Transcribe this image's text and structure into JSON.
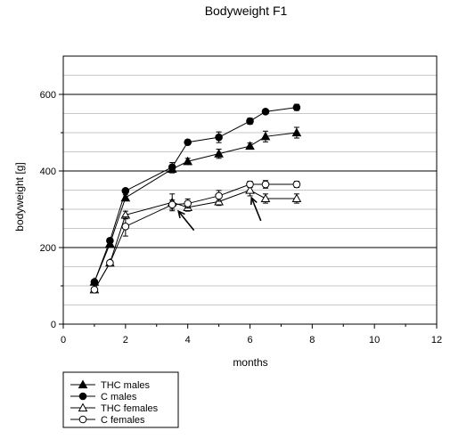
{
  "chart_data": {
    "type": "line",
    "title": "Bodyweight  F1",
    "xlabel": "months",
    "ylabel": "bodyweight [g]",
    "xlim": [
      0,
      12
    ],
    "ylim": [
      0,
      700
    ],
    "x_ticks": [
      0,
      2,
      4,
      6,
      8,
      10,
      12
    ],
    "y_ticks": [
      0,
      200,
      400,
      600
    ],
    "grid": "horizontal",
    "legend_position": "bottom-left",
    "series": [
      {
        "name": "THC males",
        "marker": "filled-triangle",
        "points": [
          {
            "x": 1.0,
            "y": 110,
            "err": 4
          },
          {
            "x": 1.5,
            "y": 210,
            "err": 5
          },
          {
            "x": 2.0,
            "y": 330,
            "err": 8
          },
          {
            "x": 3.5,
            "y": 405,
            "err": 10
          },
          {
            "x": 4.0,
            "y": 425,
            "err": 8
          },
          {
            "x": 5.0,
            "y": 445,
            "err": 12
          },
          {
            "x": 6.0,
            "y": 465,
            "err": 8
          },
          {
            "x": 6.5,
            "y": 490,
            "err": 14
          },
          {
            "x": 7.5,
            "y": 500,
            "err": 14
          }
        ]
      },
      {
        "name": "C males",
        "marker": "filled-circle",
        "points": [
          {
            "x": 1.0,
            "y": 110,
            "err": 3
          },
          {
            "x": 1.5,
            "y": 218,
            "err": 5
          },
          {
            "x": 2.0,
            "y": 348,
            "err": 6
          },
          {
            "x": 3.5,
            "y": 410,
            "err": 12
          },
          {
            "x": 4.0,
            "y": 475,
            "err": 6
          },
          {
            "x": 5.0,
            "y": 488,
            "err": 14
          },
          {
            "x": 6.0,
            "y": 530,
            "err": 8
          },
          {
            "x": 6.5,
            "y": 555,
            "err": 6
          },
          {
            "x": 7.5,
            "y": 566,
            "err": 8
          }
        ]
      },
      {
        "name": "THC females",
        "marker": "open-triangle",
        "points": [
          {
            "x": 1.0,
            "y": 90,
            "err": 4
          },
          {
            "x": 1.5,
            "y": 160,
            "err": 5
          },
          {
            "x": 2.0,
            "y": 285,
            "err": 10
          },
          {
            "x": 3.5,
            "y": 318,
            "err": 22
          },
          {
            "x": 4.0,
            "y": 305,
            "err": 10
          },
          {
            "x": 5.0,
            "y": 320,
            "err": 10
          },
          {
            "x": 6.0,
            "y": 350,
            "err": 15
          },
          {
            "x": 6.5,
            "y": 328,
            "err": 12
          },
          {
            "x": 7.5,
            "y": 328,
            "err": 12
          }
        ]
      },
      {
        "name": "C females",
        "marker": "open-circle",
        "points": [
          {
            "x": 1.0,
            "y": 90,
            "err": 4
          },
          {
            "x": 1.5,
            "y": 160,
            "err": 5
          },
          {
            "x": 2.0,
            "y": 255,
            "err": 25
          },
          {
            "x": 3.5,
            "y": 312,
            "err": 12
          },
          {
            "x": 4.0,
            "y": 315,
            "err": 12
          },
          {
            "x": 5.0,
            "y": 335,
            "err": 14
          },
          {
            "x": 6.0,
            "y": 365,
            "err": 8
          },
          {
            "x": 6.5,
            "y": 365,
            "err": 10
          },
          {
            "x": 7.5,
            "y": 365,
            "err": 8
          }
        ]
      }
    ],
    "annotations": [
      {
        "type": "arrow",
        "from": {
          "x": 4.2,
          "y": 245
        },
        "to": {
          "x": 3.7,
          "y": 295
        }
      },
      {
        "type": "arrow",
        "from": {
          "x": 6.35,
          "y": 270
        },
        "to": {
          "x": 6.05,
          "y": 330
        }
      }
    ]
  }
}
